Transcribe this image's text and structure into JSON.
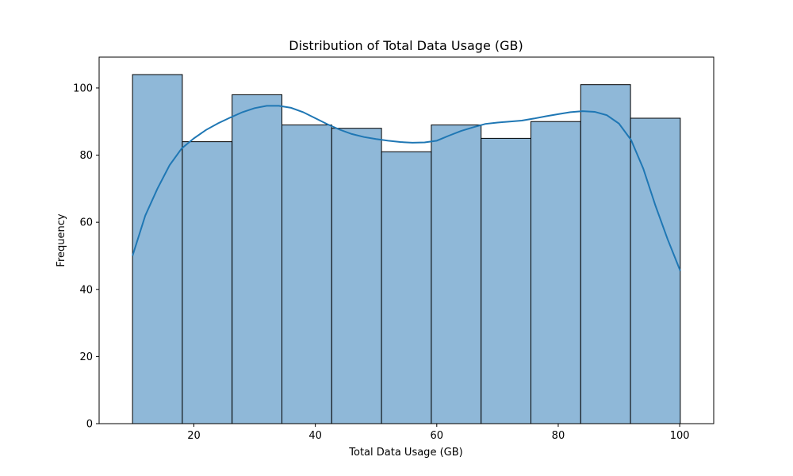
{
  "chart_data": {
    "type": "histogram",
    "title": "Distribution of Total Data Usage (GB)",
    "xlabel": "Total Data Usage (GB)",
    "ylabel": "Frequency",
    "xlim": [
      4.4,
      105.6
    ],
    "ylim": [
      0,
      109.2
    ],
    "bin_edges": [
      9.9,
      18.1,
      26.3,
      34.5,
      42.7,
      50.9,
      59.1,
      67.3,
      75.5,
      83.7,
      91.9,
      100.1
    ],
    "frequencies": [
      104,
      84,
      98,
      89,
      88,
      81,
      89,
      85,
      90,
      101,
      91
    ],
    "x_ticks": [
      20,
      40,
      60,
      80,
      100
    ],
    "y_ticks": [
      0,
      20,
      40,
      60,
      80,
      100
    ],
    "kde": {
      "x": [
        9.9,
        12,
        14,
        16,
        18,
        20,
        22,
        24,
        26,
        28,
        30,
        32,
        34,
        36,
        38,
        40,
        42,
        44,
        46,
        48,
        50,
        52,
        54,
        56,
        58,
        60,
        62,
        64,
        66,
        68,
        70,
        72,
        74,
        76,
        78,
        80,
        82,
        84,
        86,
        88,
        90,
        92,
        94,
        96,
        98,
        100.1
      ],
      "y": [
        50,
        62,
        70,
        77,
        82,
        85,
        87.5,
        89.5,
        91.2,
        92.8,
        94,
        94.7,
        94.7,
        94.1,
        92.8,
        91,
        89.2,
        87.6,
        86.3,
        85.4,
        84.8,
        84.3,
        83.9,
        83.7,
        83.8,
        84.3,
        85.8,
        87.2,
        88.3,
        89.3,
        89.7,
        90,
        90.3,
        90.9,
        91.6,
        92.2,
        92.8,
        93.1,
        92.9,
        91.9,
        89.4,
        84.5,
        76,
        65,
        55,
        45.5
      ]
    },
    "bar_color": "#8fb8d8",
    "bar_edge_color": "#000000",
    "kde_color": "#1f77b4"
  }
}
